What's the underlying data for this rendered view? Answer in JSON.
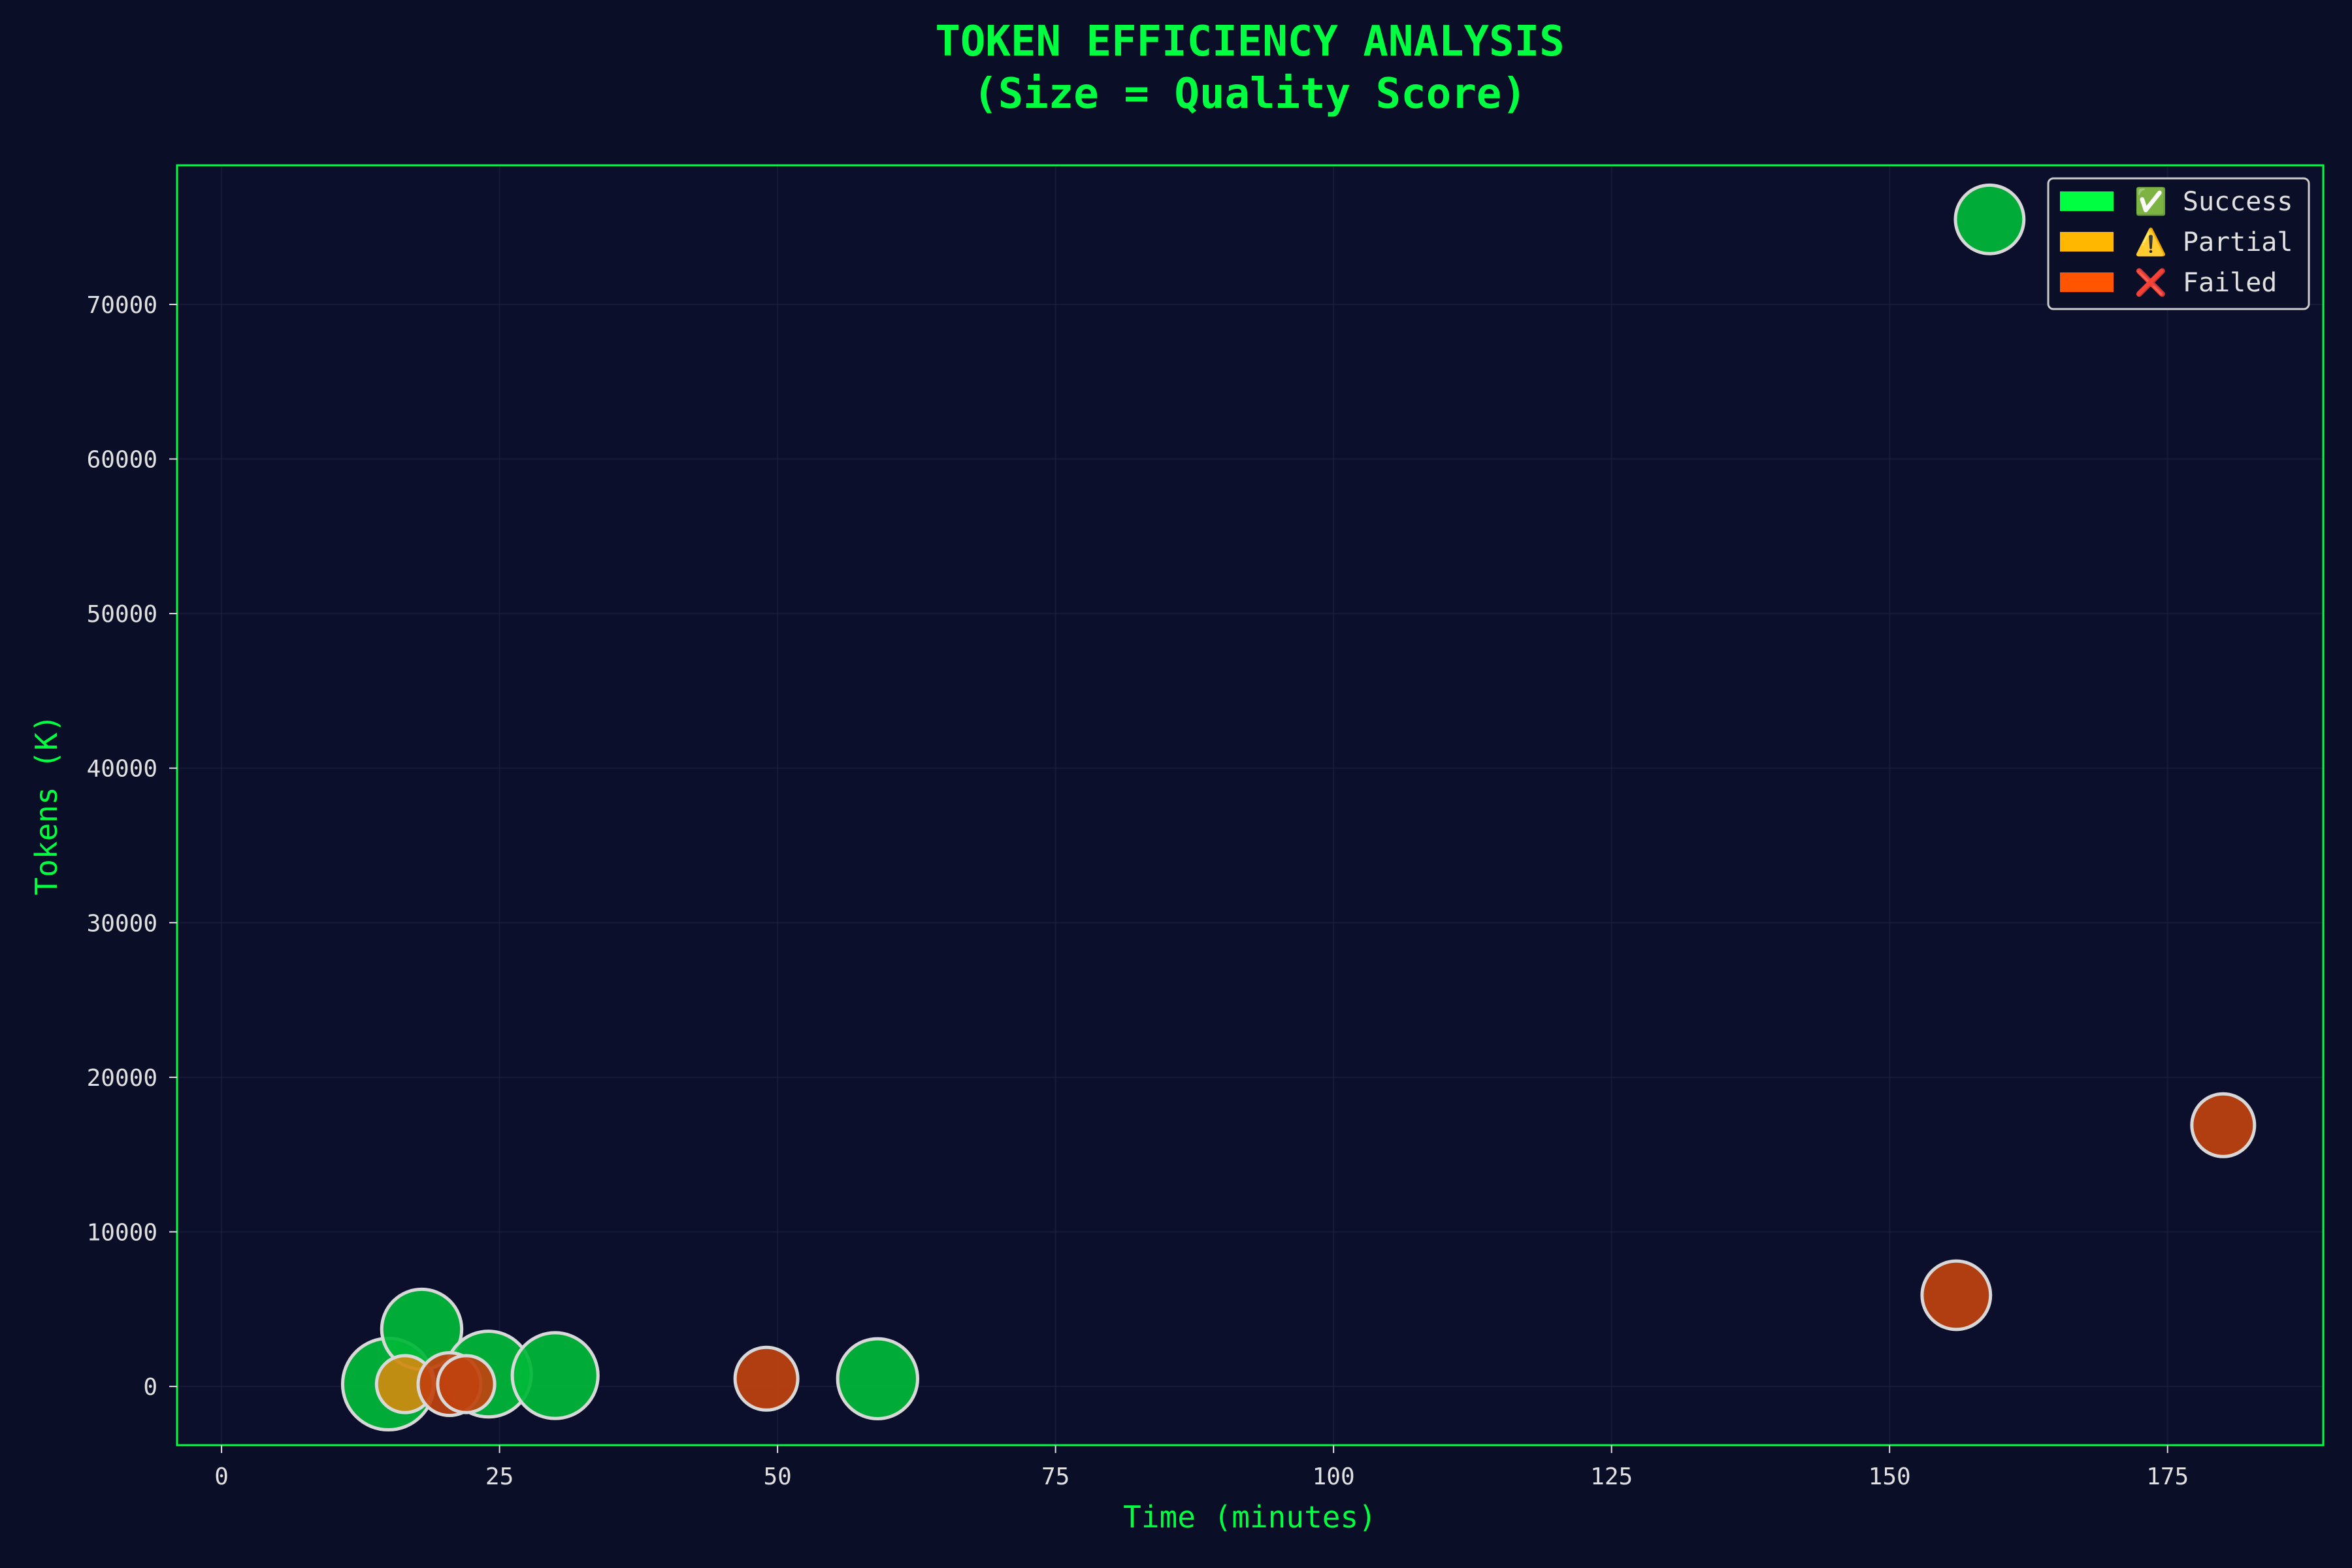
{
  "chart_data": {
    "type": "scatter",
    "title": "TOKEN EFFICIENCY ANALYSIS",
    "subtitle": "(Size = Quality Score)",
    "xlabel": "Time (minutes)",
    "ylabel": "Tokens (K)",
    "xlim": [
      -4,
      189
    ],
    "ylim": [
      -3800,
      79000
    ],
    "xticks": [
      0,
      25,
      50,
      75,
      100,
      125,
      150,
      175
    ],
    "yticks": [
      0,
      10000,
      20000,
      30000,
      40000,
      50000,
      60000,
      70000
    ],
    "grid": true,
    "size_meaning": "Quality Score",
    "legend": {
      "placement": "top-right",
      "entries": [
        {
          "label": "✅ Success",
          "color": "#00ff41"
        },
        {
          "label": "⚠️ Partial",
          "color": "#ffb700"
        },
        {
          "label": "❌ Failed",
          "color": "#ff5500"
        }
      ]
    },
    "colors": {
      "background": "#0a0e27",
      "frame": "#00ff41",
      "title": "#00ff41",
      "axis_label": "#00ff41",
      "tick_label": "#e0e0e0",
      "success_point": "#00b838",
      "partial_point": "#d08a10",
      "failed_point": "#c0420e",
      "point_edge": "#d8d8d8"
    },
    "series": [
      {
        "name": "✅ Success",
        "status": "success",
        "points": [
          {
            "x": 15,
            "y": 150,
            "quality": 10
          },
          {
            "x": 18,
            "y": 3700,
            "quality": 8
          },
          {
            "x": 24,
            "y": 800,
            "quality": 9
          },
          {
            "x": 30,
            "y": 700,
            "quality": 9
          },
          {
            "x": 59,
            "y": 500,
            "quality": 8
          },
          {
            "x": 159,
            "y": 75500,
            "quality": 6
          }
        ]
      },
      {
        "name": "⚠️ Partial",
        "status": "partial",
        "points": [
          {
            "x": 16.5,
            "y": 150,
            "quality": 4
          }
        ]
      },
      {
        "name": "❌ Failed",
        "status": "failed",
        "points": [
          {
            "x": 20.5,
            "y": 150,
            "quality": 5
          },
          {
            "x": 22,
            "y": 150,
            "quality": 4
          },
          {
            "x": 49,
            "y": 500,
            "quality": 5
          },
          {
            "x": 156,
            "y": 5900,
            "quality": 6
          },
          {
            "x": 180,
            "y": 16900,
            "quality": 5
          }
        ]
      }
    ]
  }
}
